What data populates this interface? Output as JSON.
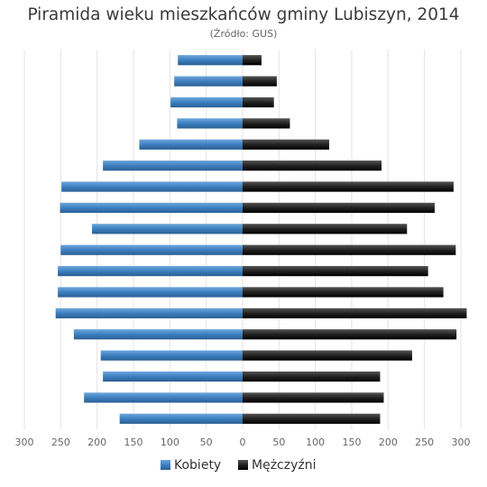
{
  "chart_data": {
    "type": "bar",
    "orientation": "horizontal-population-pyramid",
    "title": "Piramida wieku mieszkańców gminy Lubiszyn, 2014",
    "subtitle": "(Źródło: GUS)",
    "xlim": [
      -300,
      300
    ],
    "x_ticks": [
      -300,
      -250,
      -200,
      -150,
      -100,
      -50,
      0,
      50,
      100,
      150,
      200,
      250,
      300
    ],
    "x_tick_labels": [
      "300",
      "250",
      "200",
      "150",
      "100",
      "50",
      "0",
      "50",
      "100",
      "150",
      "200",
      "250",
      "300"
    ],
    "grid": true,
    "legend_position": "bottom-center",
    "series": [
      {
        "name": "Kobiety",
        "color": "#3d7fbf",
        "values": [
          89,
          94,
          99,
          90,
          142,
          192,
          249,
          251,
          207,
          250,
          254,
          254,
          257,
          232,
          195,
          192,
          218,
          169
        ]
      },
      {
        "name": "Mężczyźni",
        "color": "#222222",
        "values": [
          26,
          47,
          43,
          65,
          119,
          191,
          290,
          264,
          226,
          293,
          255,
          276,
          308,
          294,
          233,
          189,
          194,
          189
        ]
      }
    ]
  }
}
